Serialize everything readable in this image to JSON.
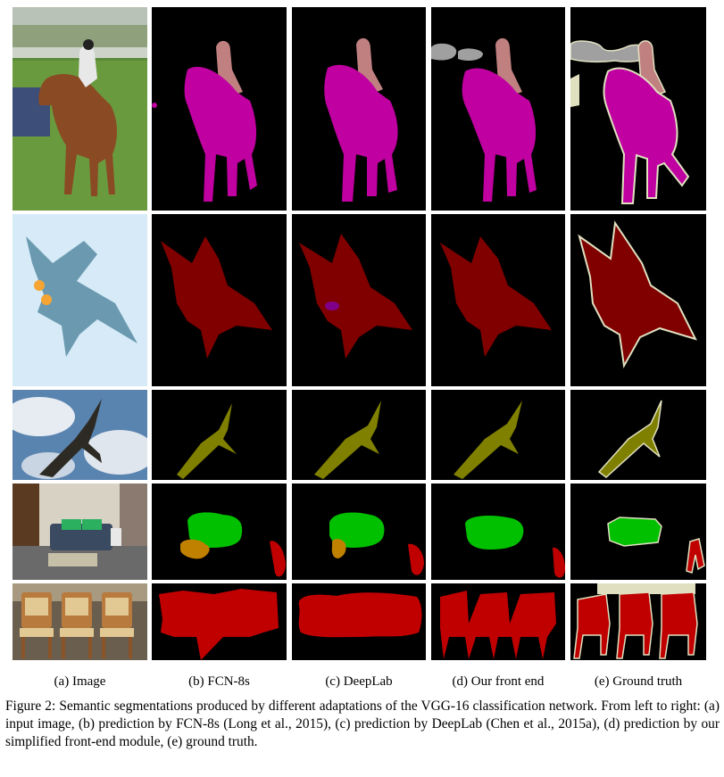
{
  "columns": [
    {
      "label": "(a) Image"
    },
    {
      "label": "(b) FCN-8s"
    },
    {
      "label": "(c) DeepLab"
    },
    {
      "label": "(d) Our front end"
    },
    {
      "label": "(e) Ground truth"
    }
  ],
  "rows": [
    {
      "subject": "horse and rider"
    },
    {
      "subject": "fighter jet"
    },
    {
      "subject": "bird in sky"
    },
    {
      "subject": "living room with sofa and chair"
    },
    {
      "subject": "row of chairs"
    }
  ],
  "caption": "Figure 2: Semantic segmentations produced by different adaptations of the VGG-16 classification network. From left to right: (a) input image, (b) prediction by FCN-8s (Long et al., 2015), (c) prediction by DeepLab (Chen et al., 2015a), (d) prediction by our simplified front-end module, (e) ground truth.",
  "colors": {
    "background": "#000000",
    "person": "#c08080",
    "horse": "#c000a0",
    "aeroplane": "#800000",
    "bird": "#808000",
    "sofa": "#00c000",
    "chair": "#c00000",
    "pottedplant": "#c08000",
    "car": "#808080",
    "boundary": "#e0e0c0"
  }
}
